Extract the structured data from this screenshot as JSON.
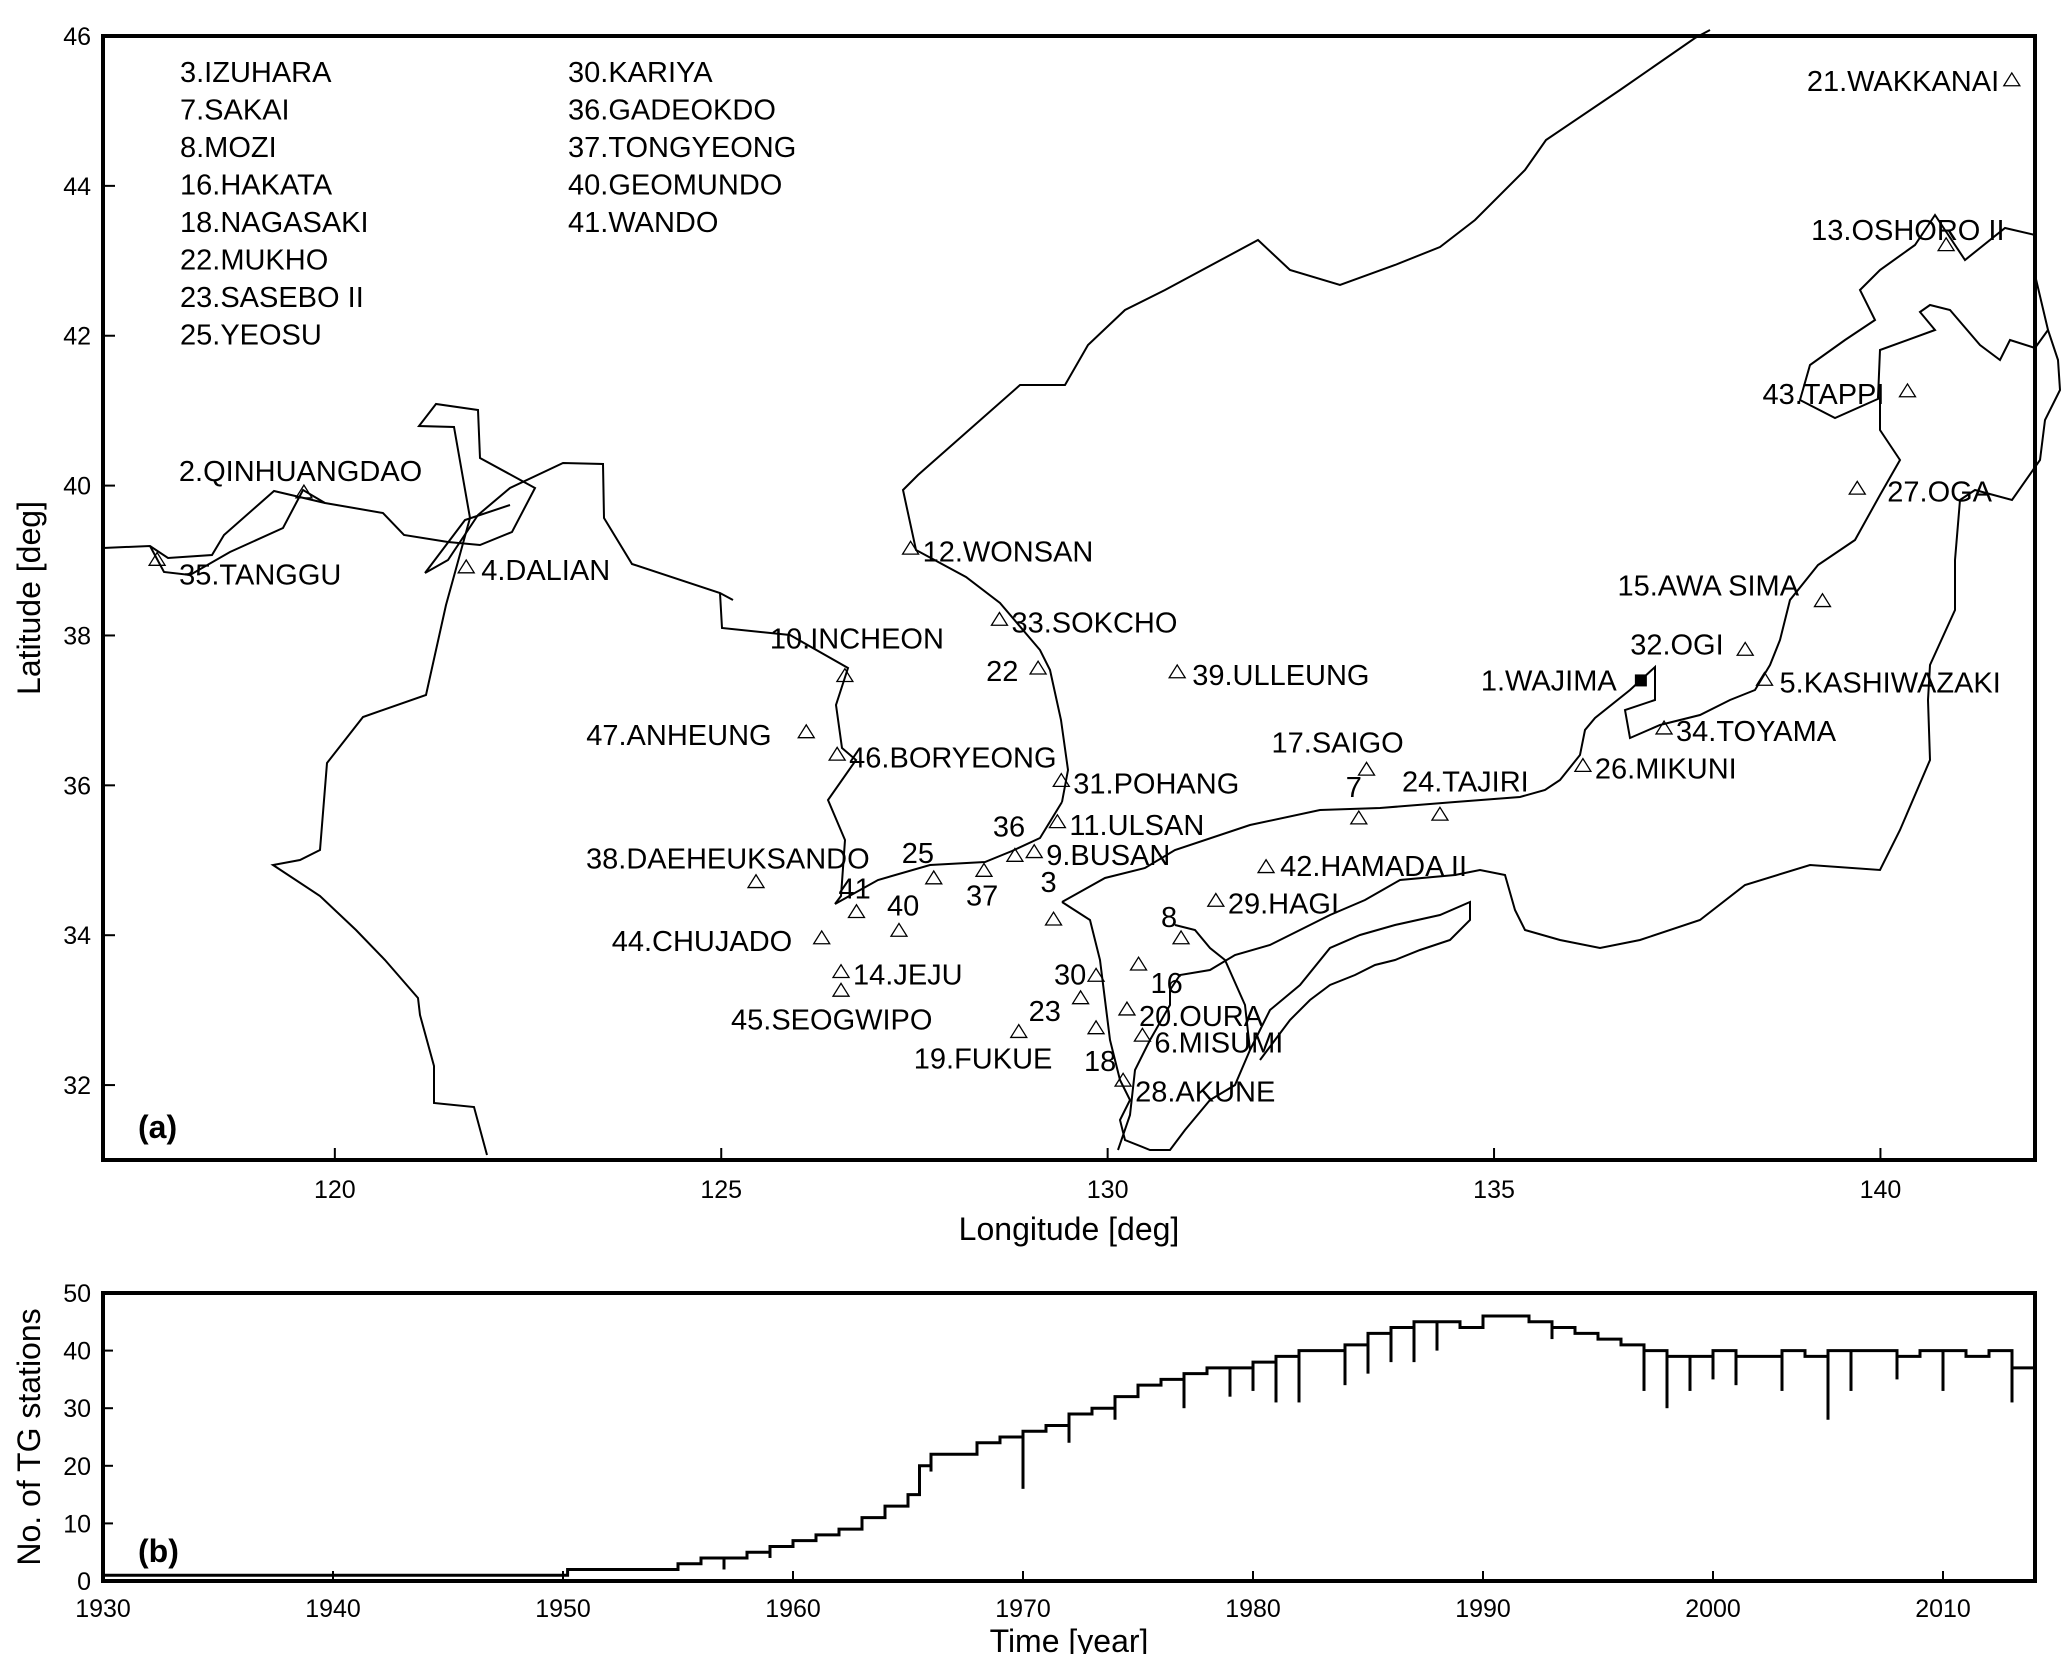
{
  "figure": {
    "panel_a_tag": "(a)",
    "panel_b_tag": "(b)"
  },
  "chart_data": [
    {
      "type": "scatter",
      "panel": "(a)",
      "xlabel": "Longitude [deg]",
      "ylabel": "Latitude [deg]",
      "xlim": [
        117,
        142
      ],
      "ylim": [
        31,
        46
      ],
      "x_ticks": [
        120,
        125,
        130,
        135,
        140
      ],
      "y_ticks": [
        32,
        34,
        36,
        38,
        40,
        42,
        44,
        46
      ],
      "grid": false,
      "marker": "open-triangle",
      "list_left": [
        "3.IZUHARA",
        "7.SAKAI",
        "8.MOZI",
        "16.HAKATA",
        "18.NAGASAKI",
        "22.MUKHO",
        "23.SASEBO II",
        "25.YEOSU"
      ],
      "list_right": [
        "30.KARIYA",
        "36.GADEOKDO",
        "37.TONGYEONG",
        "40.GEOMUNDO",
        "41.WANDO"
      ],
      "stations": [
        {
          "label": "1.WAJIMA",
          "lon": 136.9,
          "lat": 37.4,
          "filled": true
        },
        {
          "label": "2.QINHUANGDAO",
          "lon": 119.6,
          "lat": 39.9
        },
        {
          "label": "3",
          "lon": 129.3,
          "lat": 34.2
        },
        {
          "label": "4.DALIAN",
          "lon": 121.7,
          "lat": 38.9
        },
        {
          "label": "5.KASHIWAZAKI",
          "lon": 138.5,
          "lat": 37.4
        },
        {
          "label": "6.MISUMI",
          "lon": 130.45,
          "lat": 32.65
        },
        {
          "label": "7",
          "lon": 133.25,
          "lat": 35.55
        },
        {
          "label": "8",
          "lon": 130.95,
          "lat": 33.95
        },
        {
          "label": "9.BUSAN",
          "lon": 129.05,
          "lat": 35.1
        },
        {
          "label": "10.INCHEON",
          "lon": 126.6,
          "lat": 37.45
        },
        {
          "label": "11.ULSAN",
          "lon": 129.35,
          "lat": 35.5
        },
        {
          "label": "12.WONSAN",
          "lon": 127.45,
          "lat": 39.15
        },
        {
          "label": "13.OSHORO II",
          "lon": 140.85,
          "lat": 43.2
        },
        {
          "label": "14.JEJU",
          "lon": 126.55,
          "lat": 33.5
        },
        {
          "label": "15.AWA SIMA",
          "lon": 139.25,
          "lat": 38.45
        },
        {
          "label": "16",
          "lon": 130.4,
          "lat": 33.6
        },
        {
          "label": "17.SAIGO",
          "lon": 133.35,
          "lat": 36.2
        },
        {
          "label": "18",
          "lon": 129.85,
          "lat": 32.75
        },
        {
          "label": "19.FUKUE",
          "lon": 128.85,
          "lat": 32.7
        },
        {
          "label": "20.OURA",
          "lon": 130.25,
          "lat": 33.0
        },
        {
          "label": "21.WAKKANAI",
          "lon": 141.7,
          "lat": 45.4
        },
        {
          "label": "22",
          "lon": 129.1,
          "lat": 37.55
        },
        {
          "label": "23",
          "lon": 129.65,
          "lat": 33.15
        },
        {
          "label": "24.TAJIRI",
          "lon": 134.3,
          "lat": 35.6
        },
        {
          "label": "25",
          "lon": 127.75,
          "lat": 34.75
        },
        {
          "label": "26.MIKUNI",
          "lon": 136.15,
          "lat": 36.25
        },
        {
          "label": "27.OGA",
          "lon": 139.7,
          "lat": 39.95
        },
        {
          "label": "28.AKUNE",
          "lon": 130.2,
          "lat": 32.05
        },
        {
          "label": "29.HAGI",
          "lon": 131.4,
          "lat": 34.45
        },
        {
          "label": "30",
          "lon": 129.85,
          "lat": 33.45
        },
        {
          "label": "31.POHANG",
          "lon": 129.4,
          "lat": 36.05
        },
        {
          "label": "32.OGI",
          "lon": 138.25,
          "lat": 37.8
        },
        {
          "label": "33.SOKCHO",
          "lon": 128.6,
          "lat": 38.2
        },
        {
          "label": "34.TOYAMA",
          "lon": 137.2,
          "lat": 36.75
        },
        {
          "label": "35.TANGGU",
          "lon": 117.7,
          "lat": 39.0
        },
        {
          "label": "36",
          "lon": 128.8,
          "lat": 35.05
        },
        {
          "label": "37",
          "lon": 128.4,
          "lat": 34.85
        },
        {
          "label": "38.DAEHEUKSANDO",
          "lon": 125.45,
          "lat": 34.7
        },
        {
          "label": "39.ULLEUNG",
          "lon": 130.9,
          "lat": 37.5
        },
        {
          "label": "40",
          "lon": 127.3,
          "lat": 34.05
        },
        {
          "label": "41",
          "lon": 126.75,
          "lat": 34.3
        },
        {
          "label": "42.HAMADA II",
          "lon": 132.05,
          "lat": 34.9
        },
        {
          "label": "43.TAPPI",
          "lon": 140.35,
          "lat": 41.25
        },
        {
          "label": "44.CHUJADO",
          "lon": 126.3,
          "lat": 33.95
        },
        {
          "label": "45.SEOGWIPO",
          "lon": 126.55,
          "lat": 33.25
        },
        {
          "label": "46.BORYEONG",
          "lon": 126.5,
          "lat": 36.4
        },
        {
          "label": "47.ANHEUNG",
          "lon": 126.1,
          "lat": 36.7
        }
      ]
    },
    {
      "type": "line",
      "panel": "(b)",
      "xlabel": "Time [year]",
      "ylabel": "No. of TG stations",
      "xlim": [
        1930,
        2014
      ],
      "ylim": [
        0,
        50
      ],
      "x_ticks": [
        1930,
        1940,
        1950,
        1960,
        1970,
        1980,
        1990,
        2000,
        2010
      ],
      "y_ticks": [
        0,
        10,
        20,
        30,
        40,
        50
      ],
      "grid": false,
      "x": [
        1930,
        1950,
        1950.2,
        1954,
        1955,
        1956,
        1957,
        1958,
        1959,
        1960,
        1961,
        1962,
        1963,
        1964,
        1965,
        1965.5,
        1966,
        1967,
        1968,
        1969,
        1970,
        1971,
        1972,
        1973,
        1974,
        1975,
        1976,
        1977,
        1978,
        1979,
        1980,
        1981,
        1982,
        1983,
        1984,
        1985,
        1986,
        1987,
        1988,
        1989,
        1990,
        1991,
        1992,
        1993,
        1994,
        1995,
        1996,
        1997,
        1998,
        1999,
        2000,
        2001,
        2002,
        2003,
        2004,
        2005,
        2006,
        2007,
        2008,
        2009,
        2010,
        2011,
        2012,
        2013,
        2014
      ],
      "values": [
        1,
        1,
        2,
        2,
        3,
        4,
        4,
        5,
        6,
        7,
        8,
        9,
        11,
        13,
        15,
        20,
        22,
        22,
        24,
        25,
        26,
        27,
        29,
        30,
        32,
        34,
        35,
        36,
        37,
        37,
        38,
        39,
        40,
        40,
        41,
        43,
        44,
        45,
        45,
        44,
        46,
        46,
        45,
        44,
        43,
        42,
        41,
        40,
        39,
        39,
        40,
        39,
        39,
        40,
        39,
        40,
        40,
        40,
        39,
        40,
        40,
        39,
        40,
        37,
        37
      ],
      "dips": [
        [
          1957,
          2
        ],
        [
          1959,
          4
        ],
        [
          1963,
          10
        ],
        [
          1966,
          19
        ],
        [
          1970,
          16
        ],
        [
          1972,
          24
        ],
        [
          1974,
          28
        ],
        [
          1977,
          30
        ],
        [
          1979,
          32
        ],
        [
          1980,
          33
        ],
        [
          1981,
          31
        ],
        [
          1982,
          31
        ],
        [
          1984,
          34
        ],
        [
          1985,
          36
        ],
        [
          1986,
          38
        ],
        [
          1987,
          38
        ],
        [
          1988,
          40
        ],
        [
          1993,
          42
        ],
        [
          1997,
          33
        ],
        [
          1998,
          30
        ],
        [
          1999,
          33
        ],
        [
          2000,
          35
        ],
        [
          2001,
          34
        ],
        [
          2003,
          33
        ],
        [
          2005,
          28
        ],
        [
          2006,
          33
        ],
        [
          2008,
          35
        ],
        [
          2010,
          33
        ],
        [
          2013,
          31
        ]
      ]
    }
  ]
}
